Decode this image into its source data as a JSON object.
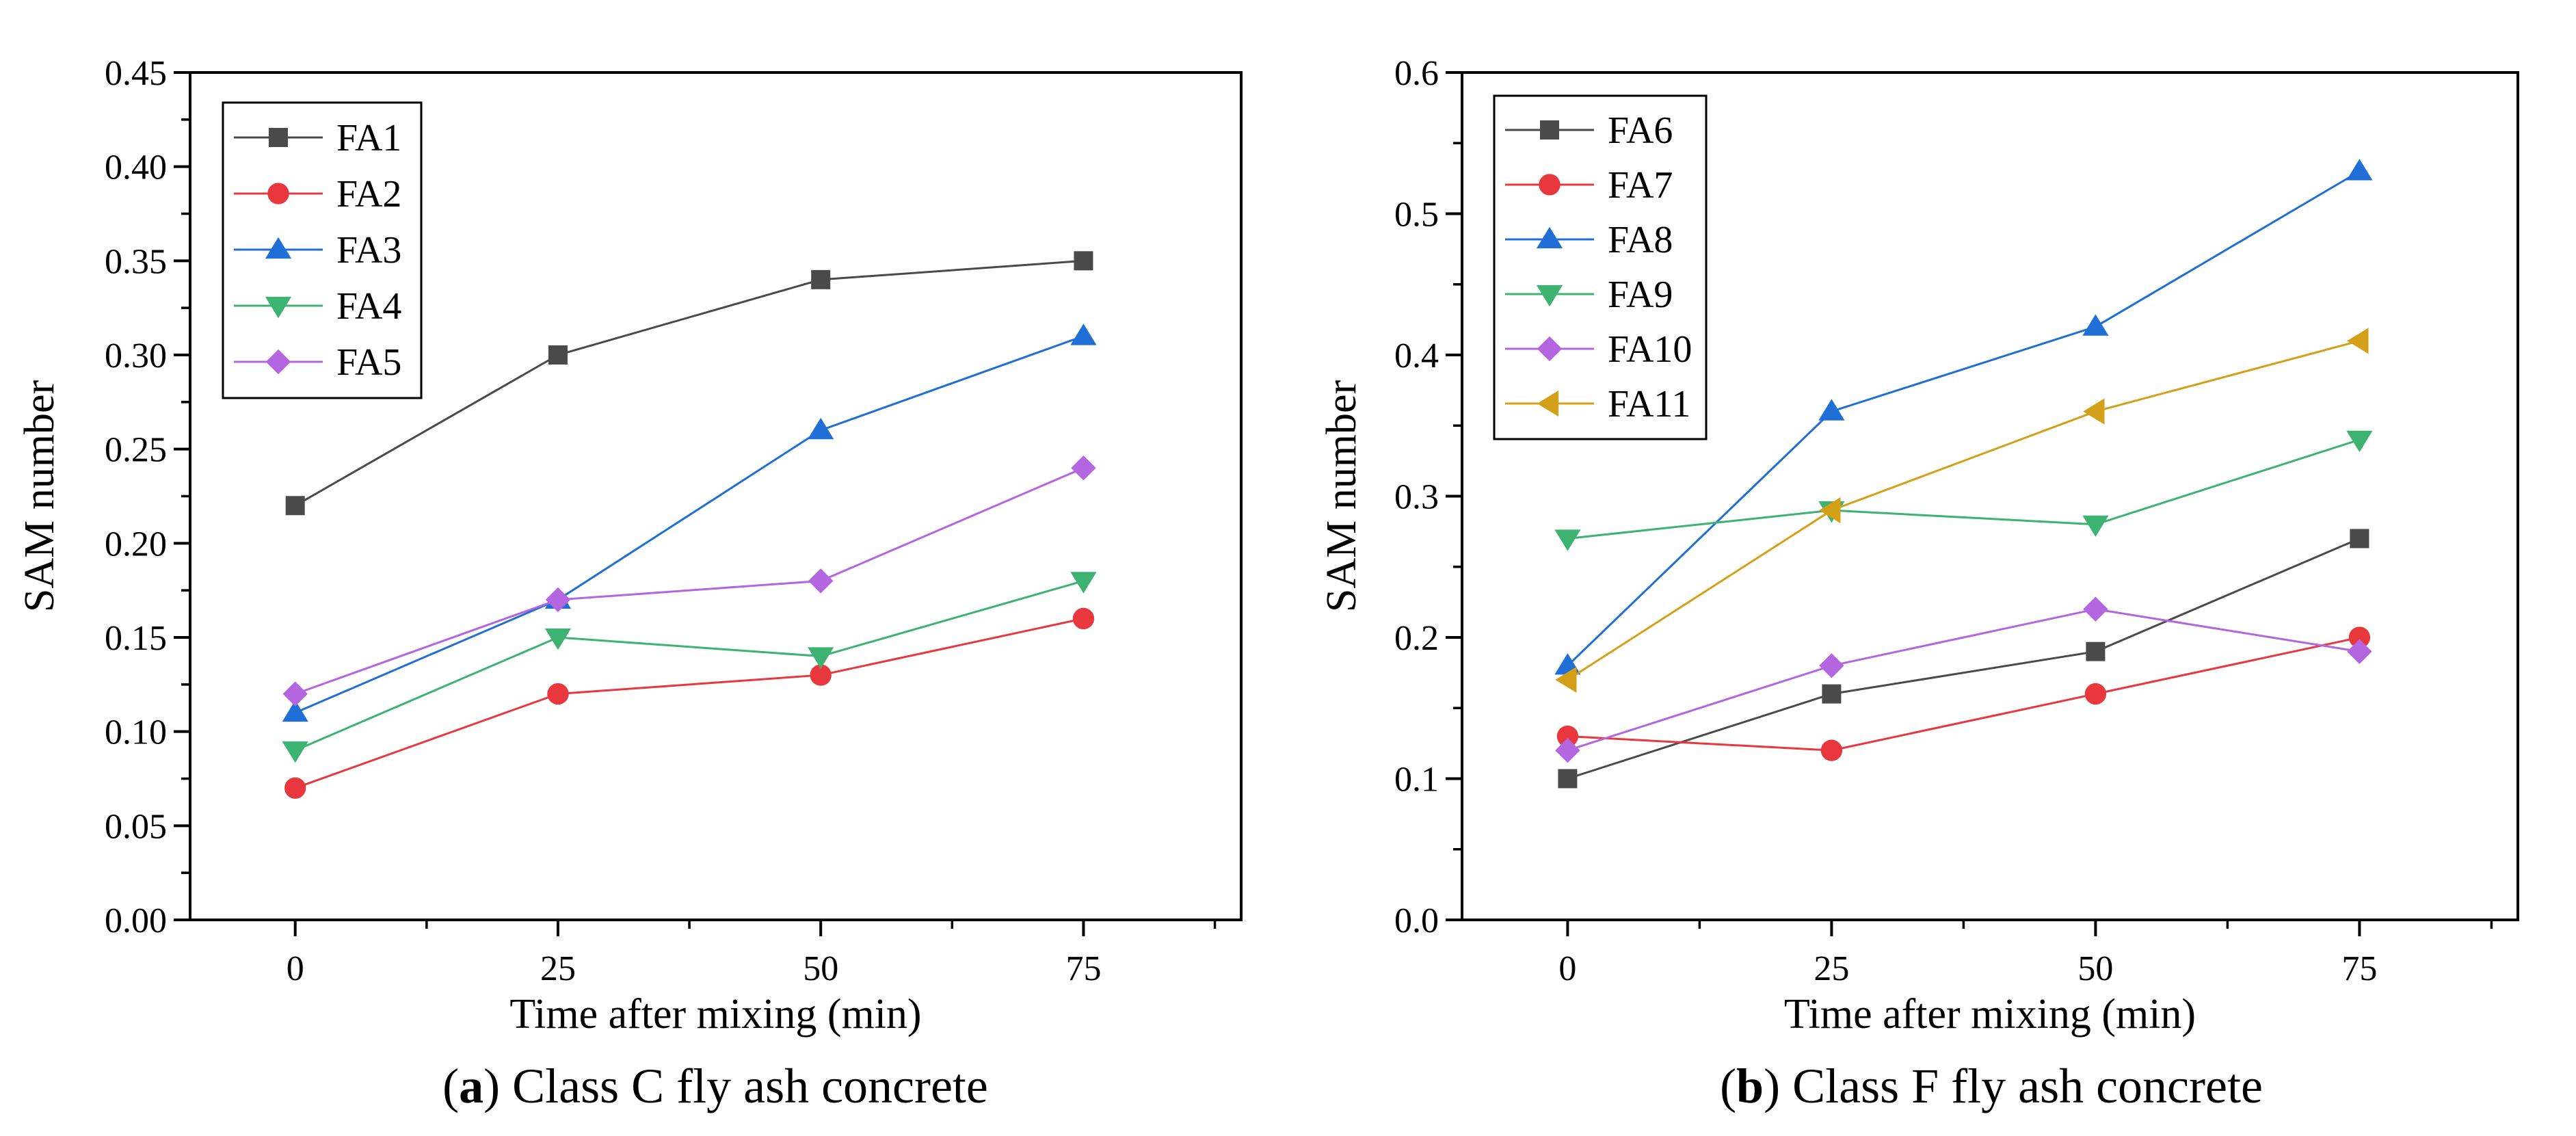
{
  "chart_data": [
    {
      "type": "line",
      "id": "a",
      "caption_letter": "a",
      "caption_open": "(",
      "caption_close": ")",
      "caption_text": " Class C fly ash concrete",
      "xlabel": "Time after mixing (min)",
      "ylabel": "SAM number",
      "x": [
        0,
        25,
        50,
        75
      ],
      "xlim": [
        -10,
        90
      ],
      "ylim": [
        0,
        0.45
      ],
      "yticks": [
        "0.00",
        "0.05",
        "0.10",
        "0.15",
        "0.20",
        "0.25",
        "0.30",
        "0.35",
        "0.40",
        "0.45"
      ],
      "xticks": [
        "0",
        "25",
        "50",
        "75"
      ],
      "legend_position": "top-left",
      "series": [
        {
          "name": "FA1",
          "values": [
            0.22,
            0.3,
            0.34,
            0.35
          ],
          "color": "#4a4a4a",
          "marker": "square"
        },
        {
          "name": "FA2",
          "values": [
            0.07,
            0.12,
            0.13,
            0.16
          ],
          "color": "#e8383d",
          "marker": "circle"
        },
        {
          "name": "FA3",
          "values": [
            0.11,
            0.17,
            0.26,
            0.31
          ],
          "color": "#1f6fd6",
          "marker": "triangle-up"
        },
        {
          "name": "FA4",
          "values": [
            0.09,
            0.15,
            0.14,
            0.18
          ],
          "color": "#3cb371",
          "marker": "triangle-down"
        },
        {
          "name": "FA5",
          "values": [
            0.12,
            0.17,
            0.18,
            0.24
          ],
          "color": "#b366e0",
          "marker": "diamond"
        }
      ]
    },
    {
      "type": "line",
      "id": "b",
      "caption_letter": "b",
      "caption_open": "(",
      "caption_close": ")",
      "caption_text": " Class F fly ash concrete",
      "xlabel": "Time after mixing (min)",
      "ylabel": "SAM number",
      "x": [
        0,
        25,
        50,
        75
      ],
      "xlim": [
        -10,
        90
      ],
      "ylim": [
        0,
        0.6
      ],
      "yticks": [
        "0.0",
        "0.1",
        "0.2",
        "0.3",
        "0.4",
        "0.5",
        "0.6"
      ],
      "xticks": [
        "0",
        "25",
        "50",
        "75"
      ],
      "legend_position": "top-left",
      "series": [
        {
          "name": "FA6",
          "values": [
            0.1,
            0.16,
            0.19,
            0.27
          ],
          "color": "#4a4a4a",
          "marker": "square"
        },
        {
          "name": "FA7",
          "values": [
            0.13,
            0.12,
            0.16,
            0.2
          ],
          "color": "#e8383d",
          "marker": "circle"
        },
        {
          "name": "FA8",
          "values": [
            0.18,
            0.36,
            0.42,
            0.53
          ],
          "color": "#1f6fd6",
          "marker": "triangle-up"
        },
        {
          "name": "FA9",
          "values": [
            0.27,
            0.29,
            0.28,
            0.34
          ],
          "color": "#3cb371",
          "marker": "triangle-down"
        },
        {
          "name": "FA10",
          "values": [
            0.12,
            0.18,
            0.22,
            0.19
          ],
          "color": "#b366e0",
          "marker": "diamond"
        },
        {
          "name": "FA11",
          "values": [
            0.17,
            0.29,
            0.36,
            0.41
          ],
          "color": "#d4a017",
          "marker": "triangle-left"
        }
      ]
    }
  ]
}
